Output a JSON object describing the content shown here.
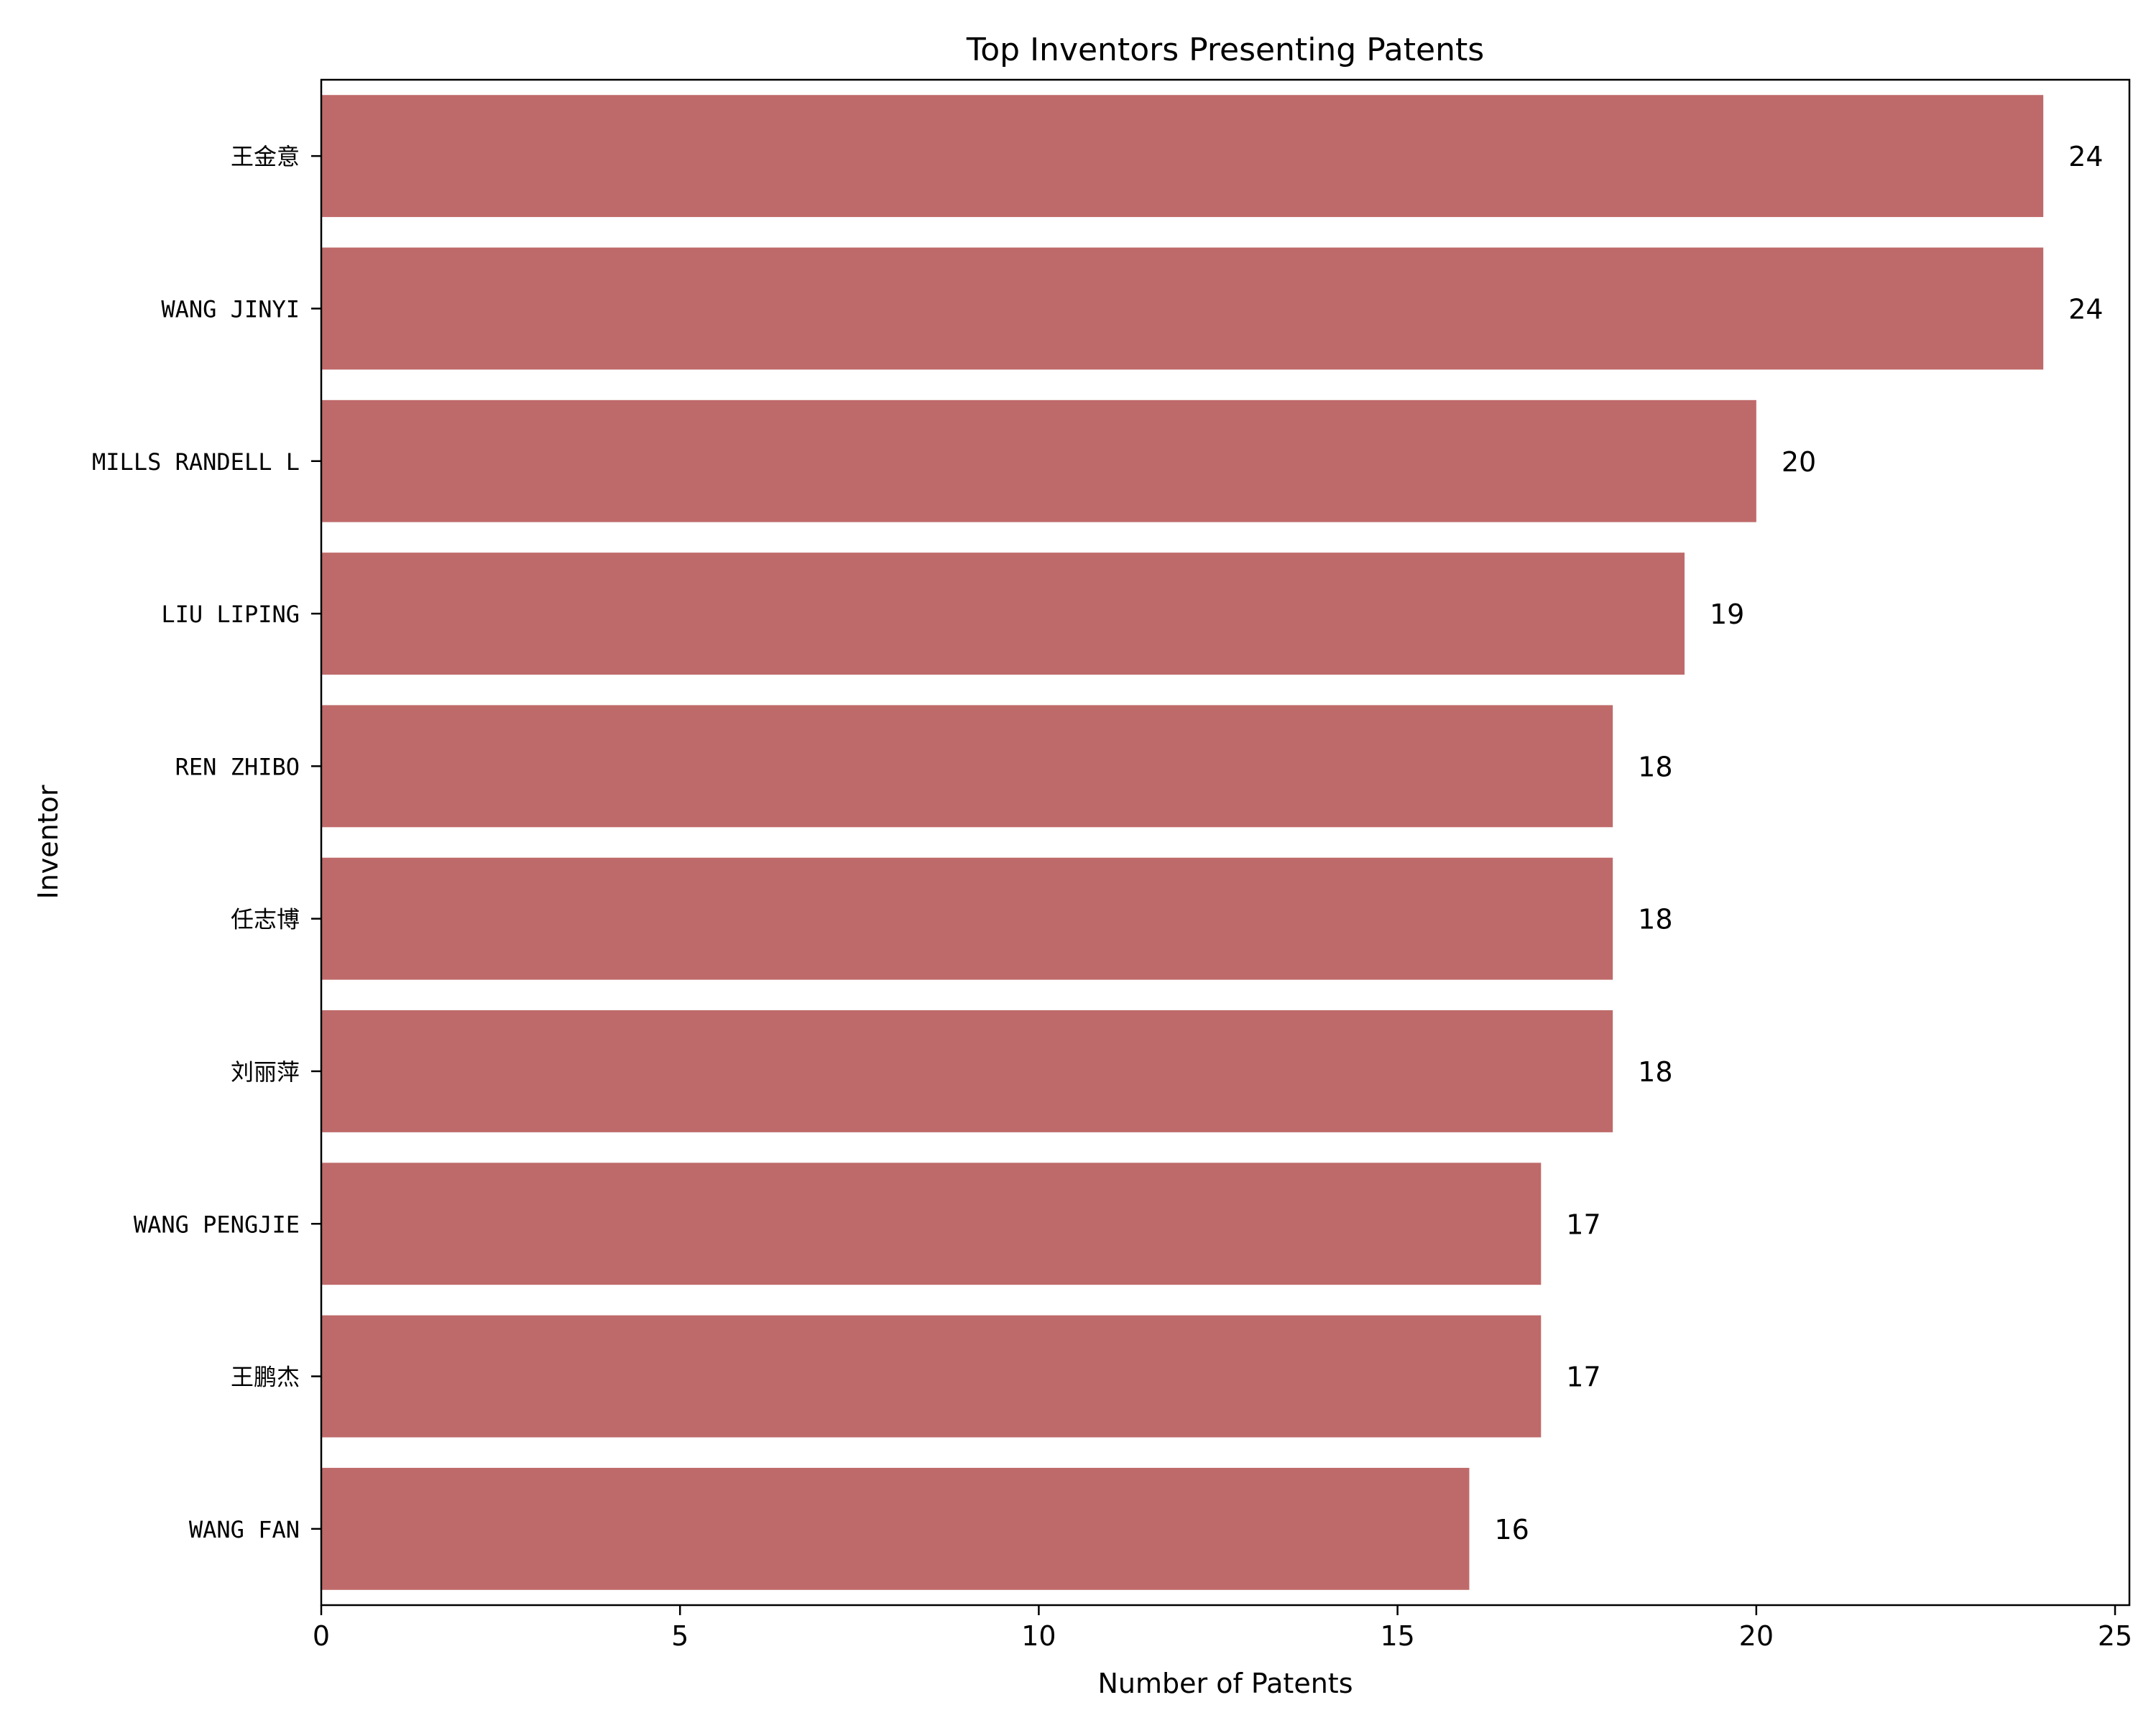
{
  "chart_data": {
    "type": "bar",
    "orientation": "horizontal",
    "title": "Top Inventors Presenting Patents",
    "xlabel": "Number of Patents",
    "ylabel": "Inventor",
    "categories": [
      "王金意",
      "WANG JINYI",
      "MILLS RANDELL L",
      "LIU LIPING",
      "REN ZHIBO",
      "任志博",
      "刘丽萍",
      "WANG PENGJIE",
      "王鹏杰",
      "WANG FAN"
    ],
    "values": [
      24,
      24,
      20,
      19,
      18,
      18,
      18,
      17,
      17,
      16
    ],
    "data_labels": [
      "24",
      "24",
      "20",
      "19",
      "18",
      "18",
      "18",
      "17",
      "17",
      "16"
    ],
    "xlim": [
      0,
      25.2
    ],
    "xticks": [
      0,
      5,
      10,
      15,
      20,
      25
    ],
    "xtick_labels": [
      "0",
      "5",
      "10",
      "15",
      "20",
      "25"
    ],
    "bar_color": "#bf6a6a",
    "grid": false,
    "legend": "none"
  }
}
